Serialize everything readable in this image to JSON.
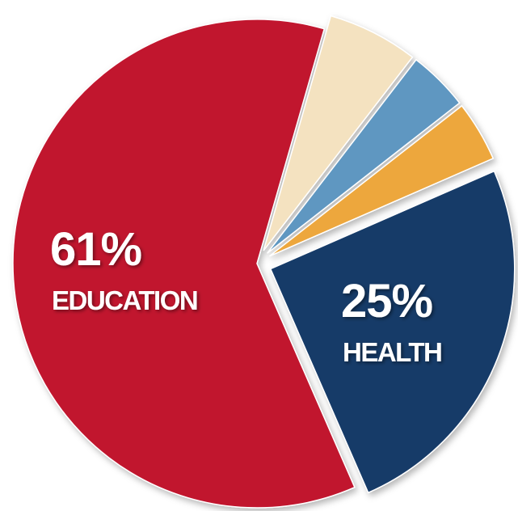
{
  "chart_data": {
    "type": "pie",
    "slices": [
      {
        "key": "education",
        "label": "EDUCATION",
        "pct_text": "61%",
        "value": 61,
        "color": "#c1122f",
        "exploded": false,
        "labeled": true
      },
      {
        "key": "minor-cream",
        "label": "",
        "pct_text": "",
        "value": 6,
        "color": "#f4e2c0",
        "exploded": true,
        "labeled": false
      },
      {
        "key": "minor-blue",
        "label": "",
        "pct_text": "",
        "value": 4,
        "color": "#5f97c1",
        "exploded": true,
        "labeled": false
      },
      {
        "key": "minor-orange",
        "label": "",
        "pct_text": "",
        "value": 4,
        "color": "#eda73c",
        "exploded": true,
        "labeled": false
      },
      {
        "key": "health",
        "label": "HEALTH",
        "pct_text": "25%",
        "value": 25,
        "color": "#173a68",
        "exploded": true,
        "labeled": true
      }
    ]
  }
}
